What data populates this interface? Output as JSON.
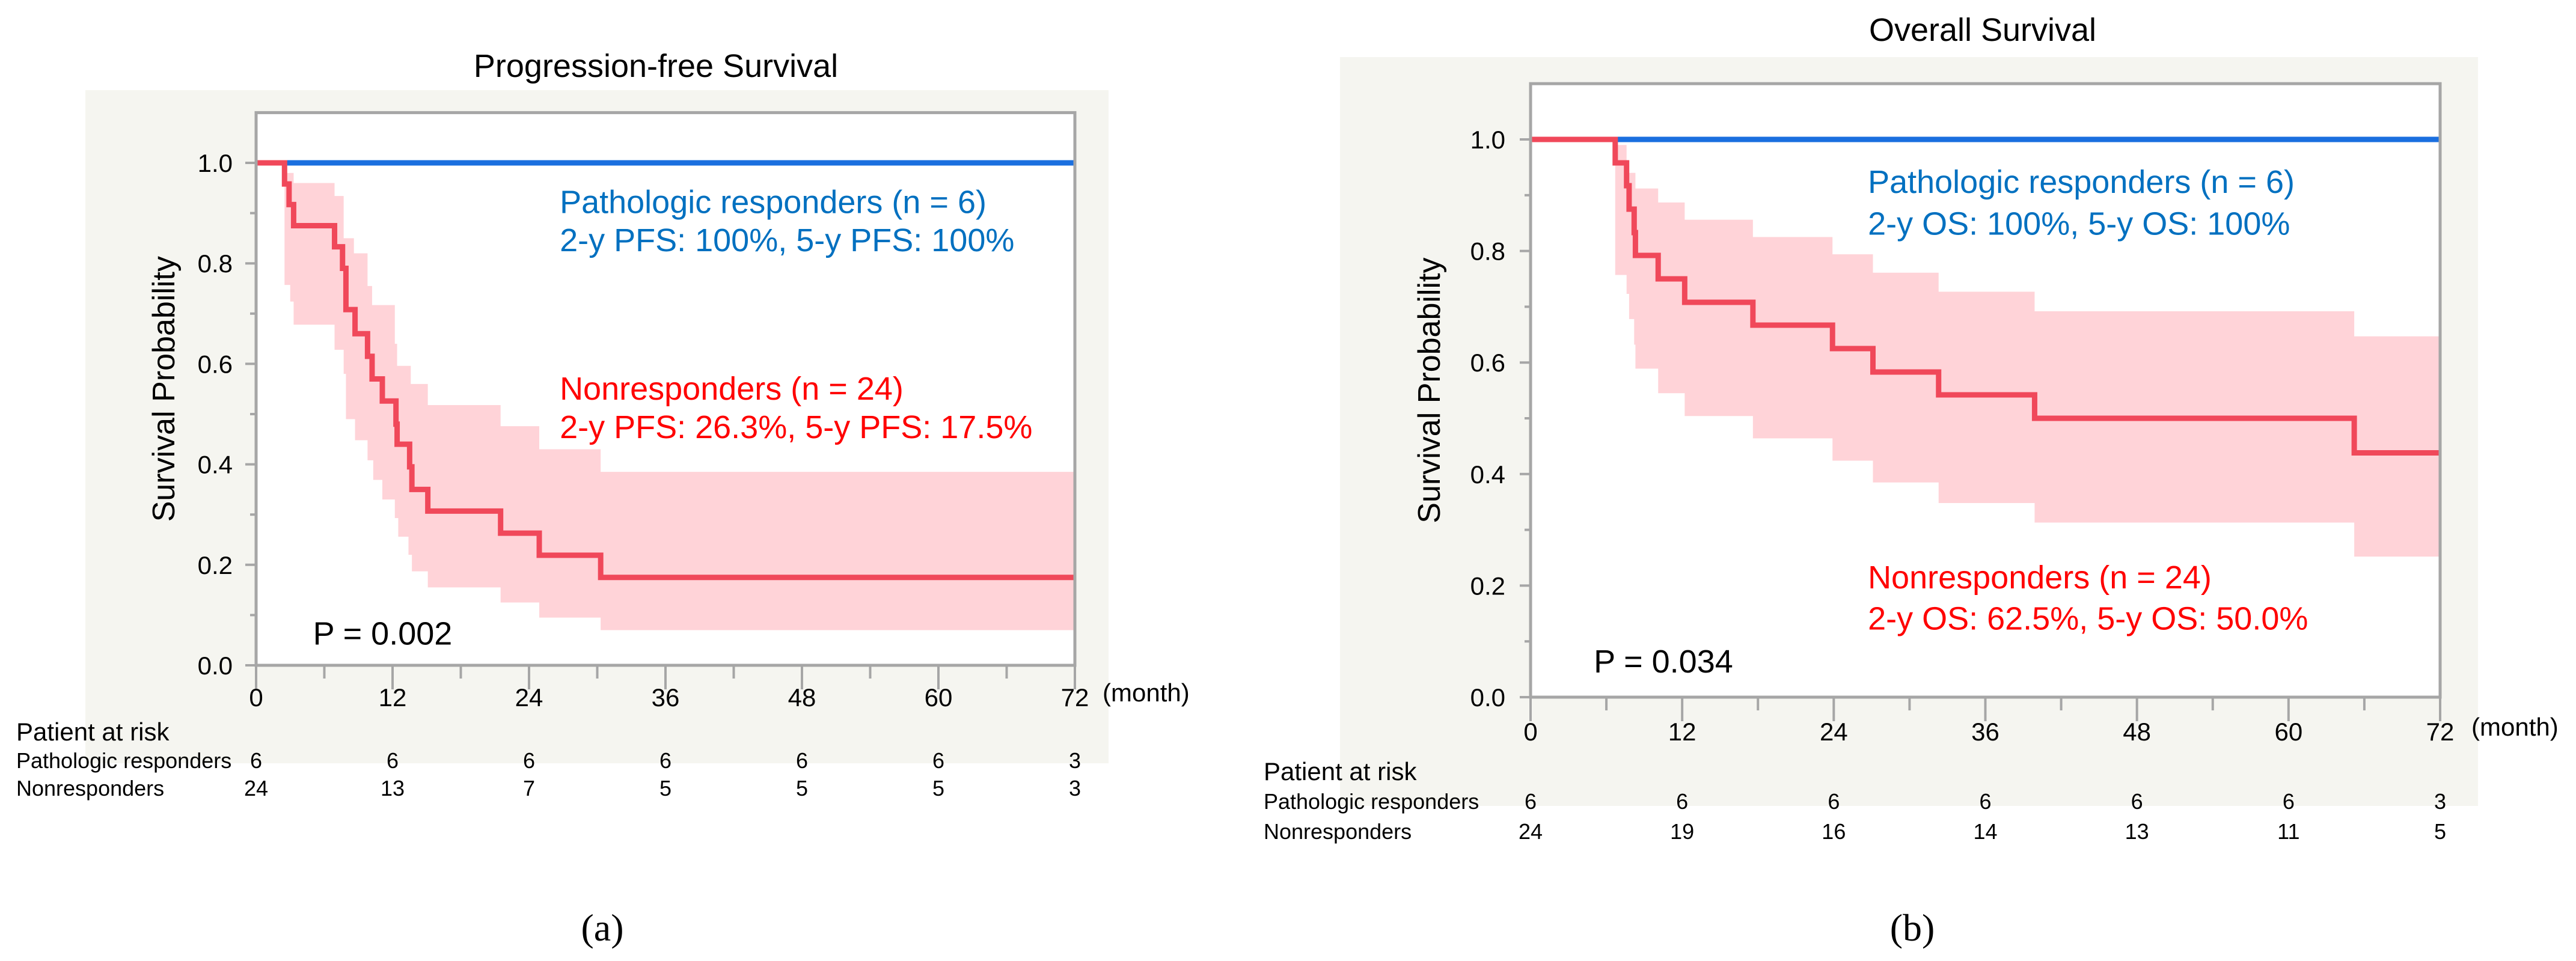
{
  "chart_data": [
    {
      "type": "line",
      "title": "Progression-free Survival",
      "ylabel": "Survival Probability",
      "xunit": "(month)",
      "xlim": [
        0,
        72
      ],
      "ylim": [
        0,
        1.1
      ],
      "xticks": [
        "0",
        "12",
        "24",
        "36",
        "48",
        "60",
        "72"
      ],
      "yticks": [
        "0.0",
        "0.2",
        "0.4",
        "0.6",
        "0.8",
        "1.0"
      ],
      "grid": false,
      "series": [
        {
          "name": "Pathologic responders",
          "n": 6,
          "color": "#1a6fdf",
          "steps": [
            [
              0,
              1.0
            ]
          ]
        },
        {
          "name": "Nonresponders",
          "n": 24,
          "color": "#f0485a",
          "ci_color": "#ffd3d8",
          "steps": [
            [
              0,
              1.0
            ],
            [
              2.5,
              0.958
            ],
            [
              2.9,
              0.917
            ],
            [
              3.3,
              0.875
            ],
            [
              6.9,
              0.833
            ],
            [
              7.6,
              0.79
            ],
            [
              7.9,
              0.708
            ],
            [
              8.7,
              0.66
            ],
            [
              9.8,
              0.615
            ],
            [
              10.2,
              0.57
            ],
            [
              11.1,
              0.526
            ],
            [
              12.3,
              0.48
            ],
            [
              12.4,
              0.44
            ],
            [
              13.5,
              0.395
            ],
            [
              13.7,
              0.35
            ],
            [
              15.1,
              0.307
            ],
            [
              21.5,
              0.263
            ],
            [
              24.9,
              0.219
            ],
            [
              30.3,
              0.175
            ]
          ],
          "ci_upper": [
            [
              2.5,
              0.98
            ],
            [
              3.3,
              0.96
            ],
            [
              6.9,
              0.934
            ],
            [
              7.7,
              0.85
            ],
            [
              8.6,
              0.82
            ],
            [
              9.8,
              0.755
            ],
            [
              10.2,
              0.717
            ],
            [
              12.2,
              0.64
            ],
            [
              12.4,
              0.596
            ],
            [
              13.6,
              0.56
            ],
            [
              15.1,
              0.518
            ],
            [
              21.5,
              0.476
            ],
            [
              24.9,
              0.43
            ],
            [
              30.3,
              0.385
            ]
          ],
          "ci_lower": [
            [
              2.5,
              0.757
            ],
            [
              3.0,
              0.724
            ],
            [
              3.3,
              0.678
            ],
            [
              6.9,
              0.628
            ],
            [
              7.7,
              0.58
            ],
            [
              7.9,
              0.49
            ],
            [
              8.7,
              0.448
            ],
            [
              9.8,
              0.408
            ],
            [
              10.3,
              0.369
            ],
            [
              11.1,
              0.33
            ],
            [
              12.2,
              0.293
            ],
            [
              12.5,
              0.256
            ],
            [
              13.4,
              0.22
            ],
            [
              13.7,
              0.187
            ],
            [
              15.1,
              0.155
            ],
            [
              21.5,
              0.125
            ],
            [
              24.9,
              0.095
            ],
            [
              30.3,
              0.07
            ]
          ]
        }
      ],
      "annotations": {
        "responders_line1": "Pathologic responders (n = 6)",
        "responders_line2": "2-y PFS: 100%, 5-y PFS: 100%",
        "nonresponders_line1": "Nonresponders (n = 24)",
        "nonresponders_line2": "2-y PFS: 26.3%, 5-y PFS: 17.5%",
        "p_value": "P = 0.002",
        "responders_color": "#0070c0",
        "nonresponders_color": "#ff0000"
      },
      "risk_table": {
        "header": "Patient at risk",
        "rows": [
          {
            "label": "Pathologic responders",
            "values": [
              "6",
              "6",
              "6",
              "6",
              "6",
              "6",
              "3"
            ]
          },
          {
            "label": "Nonresponders",
            "values": [
              "24",
              "13",
              "7",
              "5",
              "5",
              "5",
              "3"
            ]
          }
        ]
      },
      "caption": "(a)"
    },
    {
      "type": "line",
      "title": "Overall Survival",
      "ylabel": "Survival Probability",
      "xunit": "(month)",
      "xlim": [
        0,
        72
      ],
      "ylim": [
        0,
        1.1
      ],
      "xticks": [
        "0",
        "12",
        "24",
        "36",
        "48",
        "60",
        "72"
      ],
      "yticks": [
        "0.0",
        "0.2",
        "0.4",
        "0.6",
        "0.8",
        "1.0"
      ],
      "grid": false,
      "series": [
        {
          "name": "Pathologic responders",
          "n": 6,
          "color": "#1a6fdf",
          "steps": [
            [
              0,
              1.0
            ]
          ]
        },
        {
          "name": "Nonresponders",
          "n": 24,
          "color": "#f0485a",
          "ci_color": "#ffd3d8",
          "steps": [
            [
              0,
              1.0
            ],
            [
              6.7,
              0.958
            ],
            [
              7.6,
              0.917
            ],
            [
              7.8,
              0.875
            ],
            [
              8.2,
              0.833
            ],
            [
              8.3,
              0.792
            ],
            [
              10.1,
              0.75
            ],
            [
              12.2,
              0.708
            ],
            [
              17.6,
              0.667
            ],
            [
              23.9,
              0.625
            ],
            [
              27.1,
              0.583
            ],
            [
              32.3,
              0.542
            ],
            [
              39.9,
              0.5
            ],
            [
              65.2,
              0.438
            ]
          ],
          "ci_upper": [
            [
              6.7,
              0.99
            ],
            [
              7.6,
              0.94
            ],
            [
              8.3,
              0.912
            ],
            [
              10.1,
              0.887
            ],
            [
              12.2,
              0.856
            ],
            [
              17.6,
              0.825
            ],
            [
              23.9,
              0.794
            ],
            [
              27.1,
              0.761
            ],
            [
              32.3,
              0.727
            ],
            [
              39.9,
              0.692
            ],
            [
              65.2,
              0.647
            ]
          ],
          "ci_lower": [
            [
              6.7,
              0.757
            ],
            [
              7.6,
              0.723
            ],
            [
              7.8,
              0.678
            ],
            [
              8.2,
              0.632
            ],
            [
              8.3,
              0.589
            ],
            [
              10.1,
              0.545
            ],
            [
              12.2,
              0.504
            ],
            [
              17.6,
              0.464
            ],
            [
              23.9,
              0.424
            ],
            [
              27.1,
              0.385
            ],
            [
              32.3,
              0.348
            ],
            [
              39.9,
              0.313
            ],
            [
              65.2,
              0.252
            ]
          ]
        }
      ],
      "annotations": {
        "responders_line1": "Pathologic responders (n = 6)",
        "responders_line2": "2-y OS: 100%, 5-y OS: 100%",
        "nonresponders_line1": "Nonresponders (n = 24)",
        "nonresponders_line2": "2-y OS: 62.5%, 5-y OS: 50.0%",
        "p_value": "P = 0.034",
        "responders_color": "#0070c0",
        "nonresponders_color": "#ff0000"
      },
      "risk_table": {
        "header": "Patient at risk",
        "rows": [
          {
            "label": "Pathologic responders",
            "values": [
              "6",
              "6",
              "6",
              "6",
              "6",
              "6",
              "3"
            ]
          },
          {
            "label": "Nonresponders",
            "values": [
              "24",
              "19",
              "16",
              "14",
              "13",
              "11",
              "5"
            ]
          }
        ]
      },
      "caption": "(b)"
    }
  ]
}
